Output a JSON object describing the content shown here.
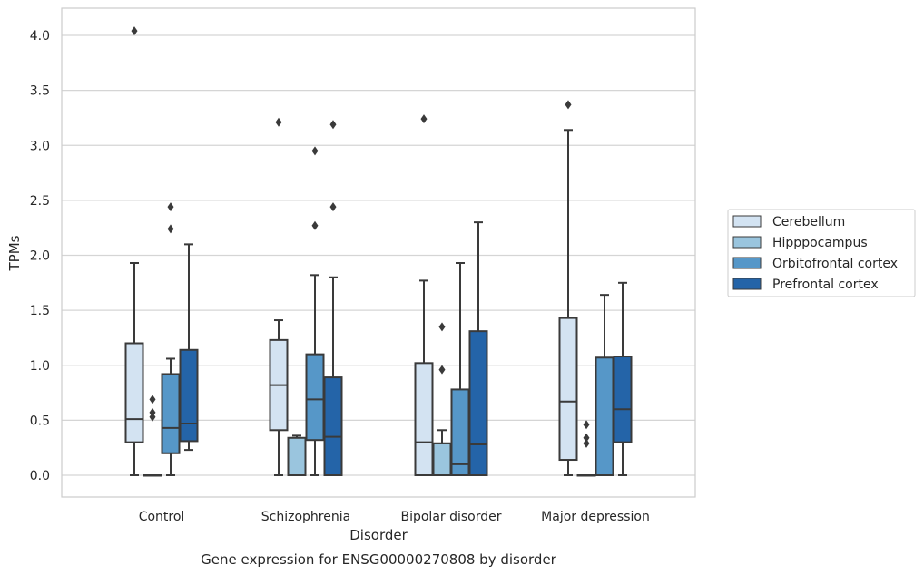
{
  "chart_data": {
    "type": "boxplot",
    "title": "Gene expression for ENSG00000270808 by disorder",
    "xlabel": "Disorder",
    "ylabel": "TPMs",
    "ylim": [
      -0.2,
      4.25
    ],
    "yticks": [
      "0.0",
      "0.5",
      "1.0",
      "1.5",
      "2.0",
      "2.5",
      "3.0",
      "3.5",
      "4.0"
    ],
    "categories": [
      "Control",
      "Schizophrenia",
      "Bipolar disorder",
      "Major depression"
    ],
    "grid": "horizontal",
    "legend_position": "right",
    "series": [
      {
        "name": "Cerebellum",
        "color": "#d3e3f2",
        "boxes": [
          {
            "whisker_low": 0.0,
            "q1": 0.3,
            "median": 0.51,
            "q3": 1.2,
            "whisker_high": 1.93,
            "outliers": [
              4.04
            ]
          },
          {
            "whisker_low": 0.0,
            "q1": 0.41,
            "median": 0.82,
            "q3": 1.23,
            "whisker_high": 1.41,
            "outliers": [
              3.21
            ]
          },
          {
            "whisker_low": 0.0,
            "q1": 0.0,
            "median": 0.3,
            "q3": 1.02,
            "whisker_high": 1.77,
            "outliers": [
              3.24
            ]
          },
          {
            "whisker_low": 0.0,
            "q1": 0.14,
            "median": 0.67,
            "q3": 1.43,
            "whisker_high": 3.14,
            "outliers": [
              3.37
            ]
          }
        ]
      },
      {
        "name": "Hipppocampus",
        "color": "#9ac5de",
        "boxes": [
          {
            "whisker_low": 0.0,
            "q1": 0.0,
            "median": 0.0,
            "q3": 0.0,
            "whisker_high": 0.0,
            "outliers": [
              0.53,
              0.57,
              0.69
            ]
          },
          {
            "whisker_low": 0.0,
            "q1": 0.0,
            "median": 0.0,
            "q3": 0.34,
            "whisker_high": 0.36,
            "outliers": []
          },
          {
            "whisker_low": 0.0,
            "q1": 0.0,
            "median": 0.29,
            "q3": 0.29,
            "whisker_high": 0.41,
            "outliers": [
              0.96,
              1.35
            ]
          },
          {
            "whisker_low": 0.0,
            "q1": 0.0,
            "median": 0.0,
            "q3": 0.0,
            "whisker_high": 0.0,
            "outliers": [
              0.29,
              0.34,
              0.46
            ]
          }
        ]
      },
      {
        "name": "Orbitofrontal cortex",
        "color": "#5697c8",
        "boxes": [
          {
            "whisker_low": 0.0,
            "q1": 0.2,
            "median": 0.43,
            "q3": 0.92,
            "whisker_high": 1.06,
            "outliers": [
              2.24,
              2.44
            ]
          },
          {
            "whisker_low": 0.0,
            "q1": 0.32,
            "median": 0.69,
            "q3": 1.1,
            "whisker_high": 1.82,
            "outliers": [
              2.27,
              2.95
            ]
          },
          {
            "whisker_low": 0.0,
            "q1": 0.0,
            "median": 0.1,
            "q3": 0.78,
            "whisker_high": 1.93,
            "outliers": []
          },
          {
            "whisker_low": 0.0,
            "q1": 0.0,
            "median": 0.0,
            "q3": 1.07,
            "whisker_high": 1.64,
            "outliers": []
          }
        ]
      },
      {
        "name": "Prefrontal cortex",
        "color": "#2464a8",
        "boxes": [
          {
            "whisker_low": 0.23,
            "q1": 0.31,
            "median": 0.47,
            "q3": 1.14,
            "whisker_high": 2.1,
            "outliers": []
          },
          {
            "whisker_low": 0.0,
            "q1": 0.0,
            "median": 0.35,
            "q3": 0.89,
            "whisker_high": 1.8,
            "outliers": [
              2.44,
              3.19
            ]
          },
          {
            "whisker_low": 0.0,
            "q1": 0.0,
            "median": 0.28,
            "q3": 1.31,
            "whisker_high": 2.3,
            "outliers": []
          },
          {
            "whisker_low": 0.0,
            "q1": 0.3,
            "median": 0.6,
            "q3": 1.08,
            "whisker_high": 1.75,
            "outliers": []
          }
        ]
      }
    ]
  }
}
